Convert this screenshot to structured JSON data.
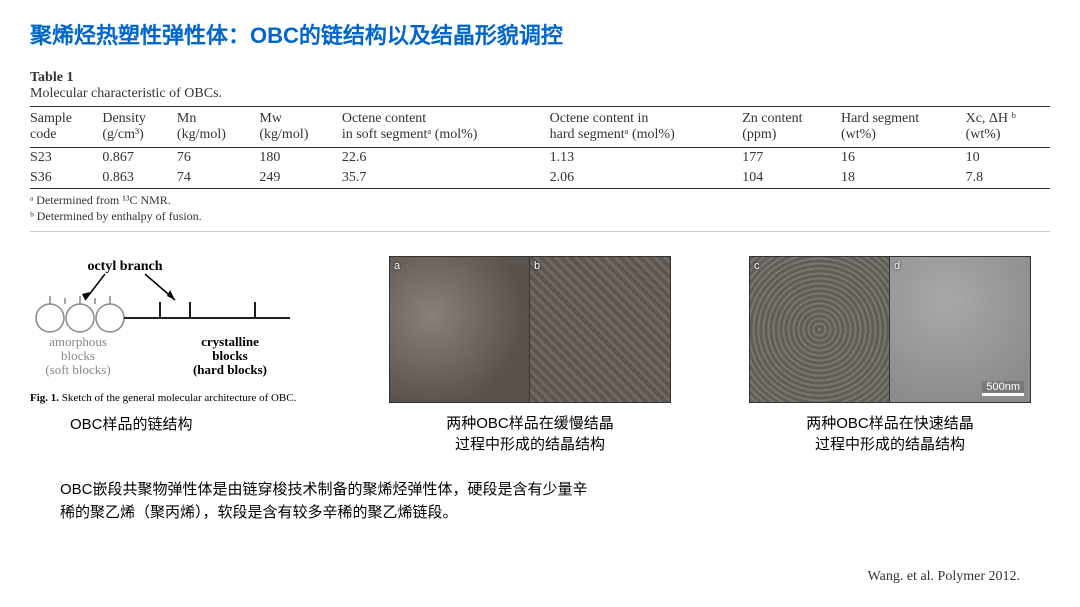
{
  "title": "聚烯烃热塑性弹性体：OBC的链结构以及结晶形貌调控",
  "table": {
    "label": "Table 1",
    "caption": "Molecular characteristic of OBCs.",
    "columns": [
      {
        "h1": "Sample",
        "h2": "code"
      },
      {
        "h1": "Density",
        "h2": "(g/cm³)"
      },
      {
        "h1": "Mn",
        "h2": "(kg/mol)"
      },
      {
        "h1": "Mw",
        "h2": "(kg/mol)"
      },
      {
        "h1": "Octene content",
        "h2": "in soft segmentᵃ (mol%)"
      },
      {
        "h1": "Octene content in",
        "h2": "hard segmentᵃ (mol%)"
      },
      {
        "h1": "Zn content",
        "h2": "(ppm)"
      },
      {
        "h1": "Hard segment",
        "h2": "(wt%)"
      },
      {
        "h1": "Xc, ΔH ᵇ",
        "h2": "(wt%)"
      }
    ],
    "rows": [
      [
        "S23",
        "0.867",
        "76",
        "180",
        "22.6",
        "1.13",
        "177",
        "16",
        "10"
      ],
      [
        "S36",
        "0.863",
        "74",
        "249",
        "35.7",
        "2.06",
        "104",
        "18",
        "7.8"
      ]
    ],
    "footnotes": [
      "ᵃ Determined from ¹³C NMR.",
      "ᵇ Determined by enthalpy of fusion."
    ]
  },
  "sketch": {
    "label_octyl": "octyl branch",
    "label_amorphous1": "amorphous",
    "label_amorphous2": "blocks",
    "label_amorphous3": "(soft blocks)",
    "label_crystalline1": "crystalline",
    "label_crystalline2": "blocks",
    "label_crystalline3": "(hard blocks)",
    "caption_serif": "Fig. 1. Sketch of the general molecular architecture of OBC.",
    "caption_cn": "OBC样品的链结构"
  },
  "micrograph_slow": {
    "labels": [
      "a",
      "b"
    ],
    "caption_l1": "两种OBC样品在缓慢结晶",
    "caption_l2": "过程中形成的结晶结构",
    "colors": [
      "#6b6460",
      "#6b6460"
    ]
  },
  "micrograph_fast": {
    "labels": [
      "c",
      "d"
    ],
    "caption_l1": "两种OBC样品在快速结晶",
    "caption_l2": "过程中形成的结晶结构",
    "scale_label": "500nm",
    "colors": [
      "#707070",
      "#969696"
    ]
  },
  "bottom_text_l1": "OBC嵌段共聚物弹性体是由链穿梭技术制备的聚烯烃弹性体，硬段是含有少量辛",
  "bottom_text_l2": "稀的聚乙烯（聚丙烯），软段是含有较多辛稀的聚乙烯链段。",
  "citation": "Wang. et al. Polymer 2012."
}
